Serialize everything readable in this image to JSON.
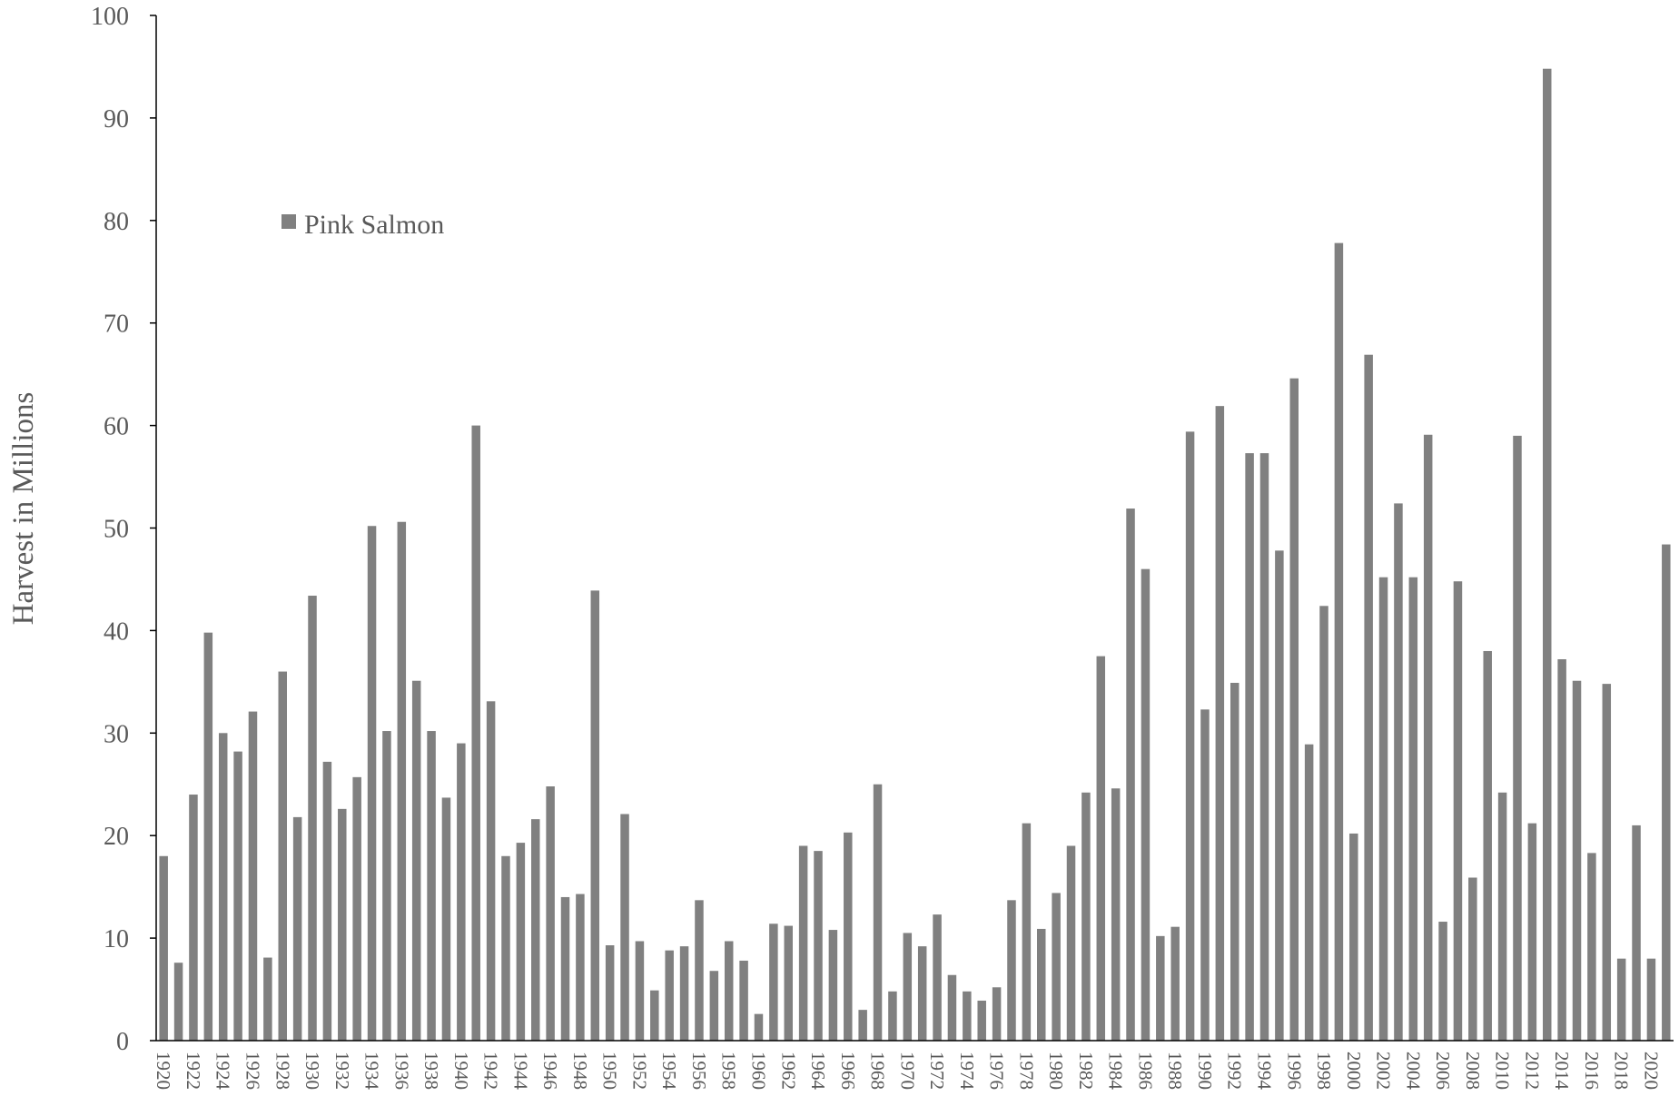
{
  "chart_data": {
    "type": "bar",
    "ylabel": "Harvest in Millions",
    "ylim": [
      0,
      100
    ],
    "yticks": [
      0,
      10,
      20,
      30,
      40,
      50,
      60,
      70,
      80,
      90,
      100
    ],
    "legend": {
      "label": "Pink Salmon",
      "position": "upper-left"
    },
    "bar_color": "#808080",
    "grid": false,
    "categories": [
      1920,
      1921,
      1922,
      1923,
      1924,
      1925,
      1926,
      1927,
      1928,
      1929,
      1930,
      1931,
      1932,
      1933,
      1934,
      1935,
      1936,
      1937,
      1938,
      1939,
      1940,
      1941,
      1942,
      1943,
      1944,
      1945,
      1946,
      1947,
      1948,
      1949,
      1950,
      1951,
      1952,
      1953,
      1954,
      1955,
      1956,
      1957,
      1958,
      1959,
      1960,
      1961,
      1962,
      1963,
      1964,
      1965,
      1966,
      1967,
      1968,
      1969,
      1970,
      1971,
      1972,
      1973,
      1974,
      1975,
      1976,
      1977,
      1978,
      1979,
      1980,
      1981,
      1982,
      1983,
      1984,
      1985,
      1986,
      1987,
      1988,
      1989,
      1990,
      1991,
      1992,
      1993,
      1994,
      1995,
      1996,
      1997,
      1998,
      1999,
      2000,
      2001,
      2002,
      2003,
      2004,
      2005,
      2006,
      2007,
      2008,
      2009,
      2010,
      2011,
      2012,
      2013,
      2014,
      2015,
      2016,
      2017,
      2018,
      2019,
      2020,
      2021
    ],
    "x_tick_labels": [
      "1920",
      "1922",
      "1924",
      "1926",
      "1928",
      "1930",
      "1932",
      "1934",
      "1936",
      "1938",
      "1940",
      "1942",
      "1944",
      "1946",
      "1948",
      "1950",
      "1952",
      "1954",
      "1956",
      "1958",
      "1960",
      "1962",
      "1964",
      "1966",
      "1968",
      "1970",
      "1972",
      "1974",
      "1976",
      "1978",
      "1980",
      "1982",
      "1984",
      "1986",
      "1988",
      "1990",
      "1992",
      "1994",
      "1996",
      "1998",
      "2000",
      "2002",
      "2004",
      "2006",
      "2008",
      "2010",
      "2012",
      "2014",
      "2016",
      "2018",
      "2020"
    ],
    "series": [
      {
        "name": "Pink Salmon",
        "values": [
          18.0,
          7.6,
          24.0,
          39.8,
          30.0,
          28.2,
          32.1,
          8.1,
          36.0,
          21.8,
          43.4,
          27.2,
          22.6,
          25.7,
          50.2,
          30.2,
          50.6,
          35.1,
          30.2,
          23.7,
          29.0,
          60.0,
          33.1,
          18.0,
          19.3,
          21.6,
          24.8,
          14.0,
          14.3,
          43.9,
          9.3,
          22.1,
          9.7,
          4.9,
          8.8,
          9.2,
          13.7,
          6.8,
          9.7,
          7.8,
          2.6,
          11.4,
          11.2,
          19.0,
          18.5,
          10.8,
          20.3,
          3.0,
          25.0,
          4.8,
          10.5,
          9.2,
          12.3,
          6.4,
          4.8,
          3.9,
          5.2,
          13.7,
          21.2,
          10.9,
          14.4,
          19.0,
          24.2,
          37.5,
          24.6,
          51.9,
          46.0,
          10.2,
          11.1,
          59.4,
          32.3,
          61.9,
          34.9,
          57.3,
          57.3,
          47.8,
          64.6,
          28.9,
          42.4,
          77.8,
          20.2,
          66.9,
          45.2,
          52.4,
          45.2,
          59.1,
          11.6,
          44.8,
          15.9,
          38.0,
          24.2,
          59.0,
          21.2,
          94.8,
          37.2,
          35.1,
          18.3,
          34.8,
          8.0,
          21.0,
          8.0,
          48.4
        ]
      }
    ]
  }
}
